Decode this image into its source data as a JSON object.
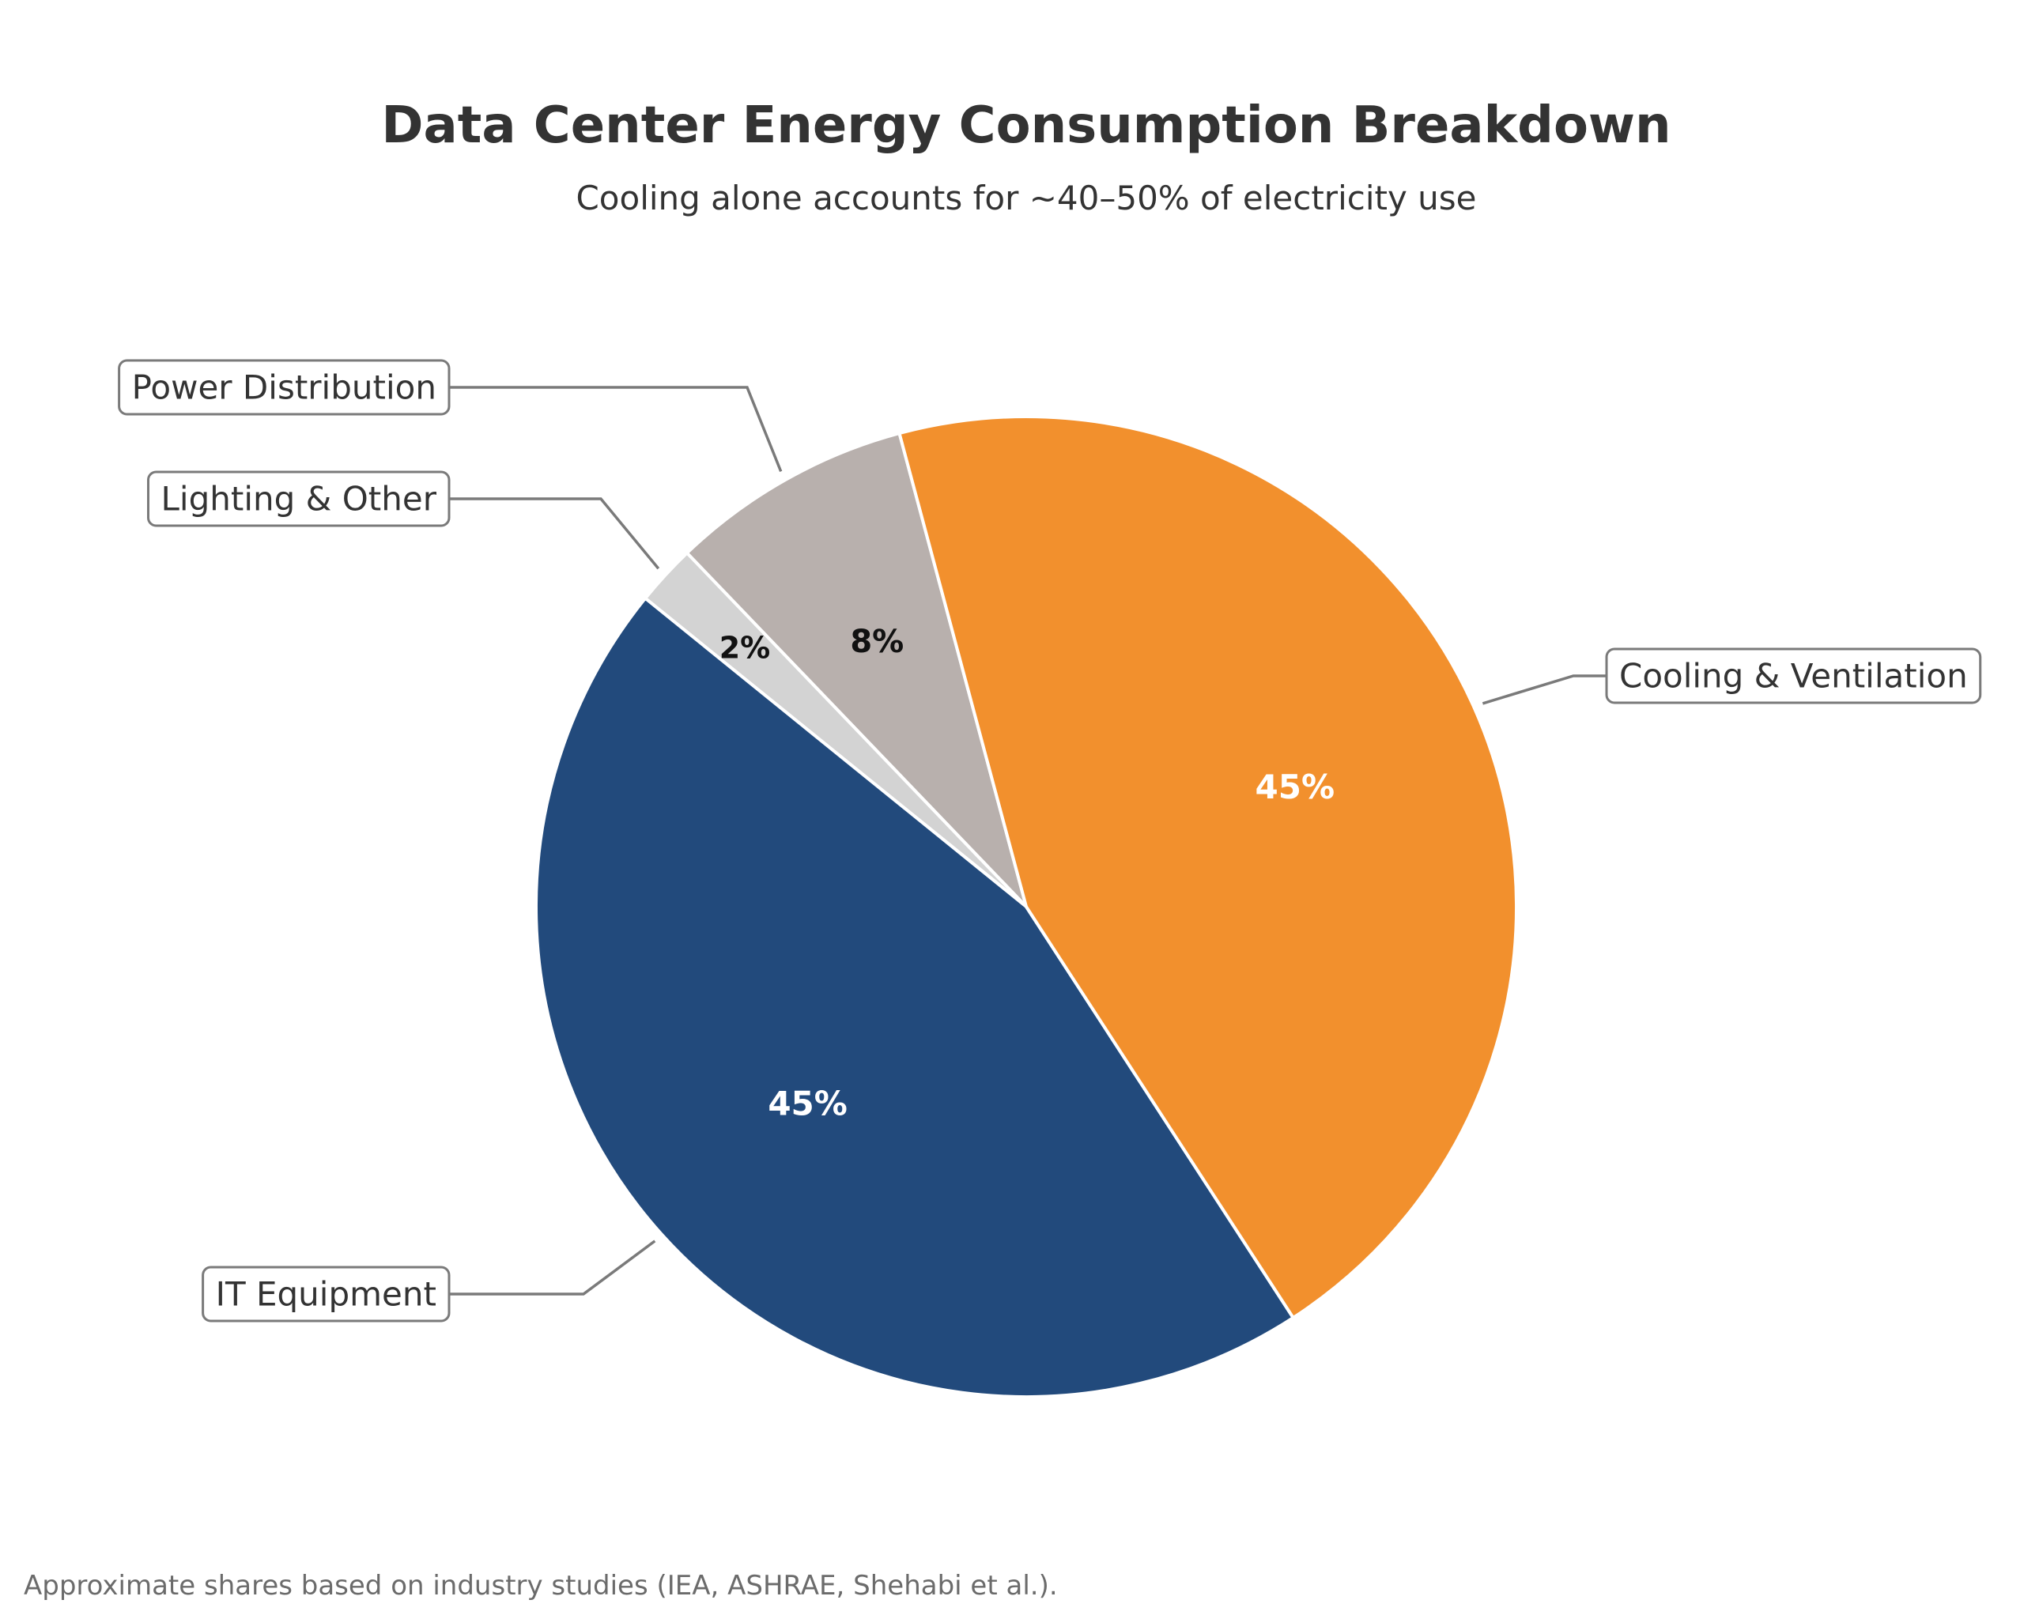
{
  "chart_data": {
    "type": "pie",
    "title": "Data Center Energy Consumption Breakdown",
    "subtitle": "Cooling alone accounts for ~40–50% of electricity use",
    "footnote": "Approximate shares based on industry studies (IEA, ASHRAE, Shehabi et al.).",
    "start_angle_deg": 105,
    "direction": "counterclockwise",
    "slices": [
      {
        "label": "Power Distribution",
        "value": 8,
        "pct_label": "8%",
        "color": "#b8b0ad",
        "pct_color": "#111111"
      },
      {
        "label": "Lighting & Other",
        "value": 2,
        "pct_label": "2%",
        "color": "#d3d3d3",
        "pct_color": "#111111"
      },
      {
        "label": "IT Equipment",
        "value": 45,
        "pct_label": "45%",
        "color": "#224a7c",
        "pct_color": "#ffffff"
      },
      {
        "label": "Cooling & Ventilation",
        "value": 45,
        "pct_label": "45%",
        "color": "#f2902d",
        "pct_color": "#ffffff"
      }
    ]
  }
}
